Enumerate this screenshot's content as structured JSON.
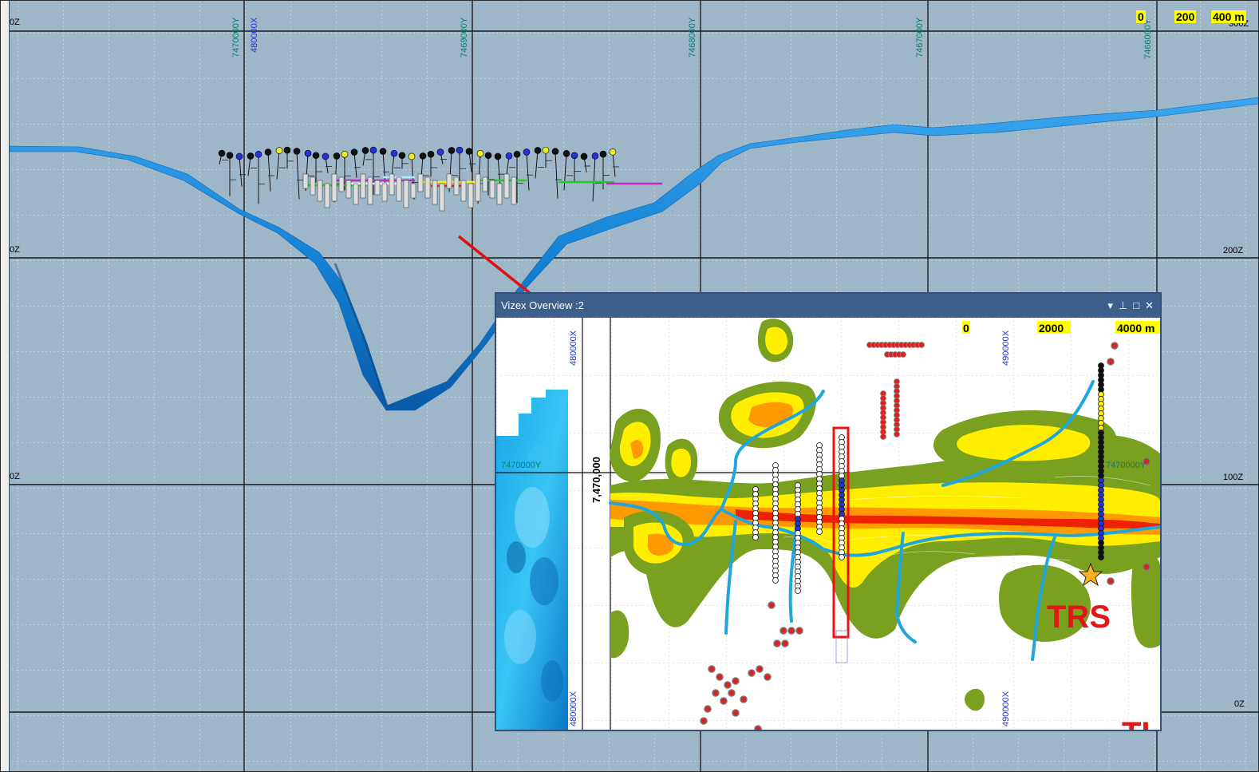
{
  "section_view": {
    "y_labels": [
      "7470000Y",
      "7469000Y",
      "7468000Y",
      "7467000Y",
      "7466000Y"
    ],
    "x_label": "480000X",
    "z_labels_left": [
      "0Z",
      "0Z",
      "0Z"
    ],
    "z_labels_right": [
      "300Z",
      "200Z",
      "100Z",
      "0Z"
    ],
    "scale": {
      "zero": "0",
      "mid": "200",
      "end": "400 m"
    }
  },
  "overview": {
    "title": "Vizex Overview :2",
    "controls": {
      "dropdown": "▾",
      "pin": "⊥",
      "maximize": "□",
      "close": "✕"
    },
    "labels": {
      "x_left_top": "480000X",
      "x_left_bottom": "480000X",
      "x_right_top": "490000X",
      "x_right_bottom": "490000X",
      "y_left": "7470000Y",
      "y_right": "7470000Y",
      "northing": "7,470,000",
      "trs": "TRS",
      "trs_partial": "TI"
    },
    "scale": {
      "zero": "0",
      "mid": "2000",
      "end": "4000 m"
    }
  },
  "colors": {
    "background": "#9db7c8",
    "surface_ribbon": "#1b8fe0",
    "arrow": "#e01010",
    "anomaly_green": "#7aa020",
    "anomaly_yellow": "#ffee00",
    "anomaly_orange": "#ff9900",
    "anomaly_red": "#ee2200",
    "river": "#1fa6dd",
    "titlebar": "#3c5f8c"
  }
}
